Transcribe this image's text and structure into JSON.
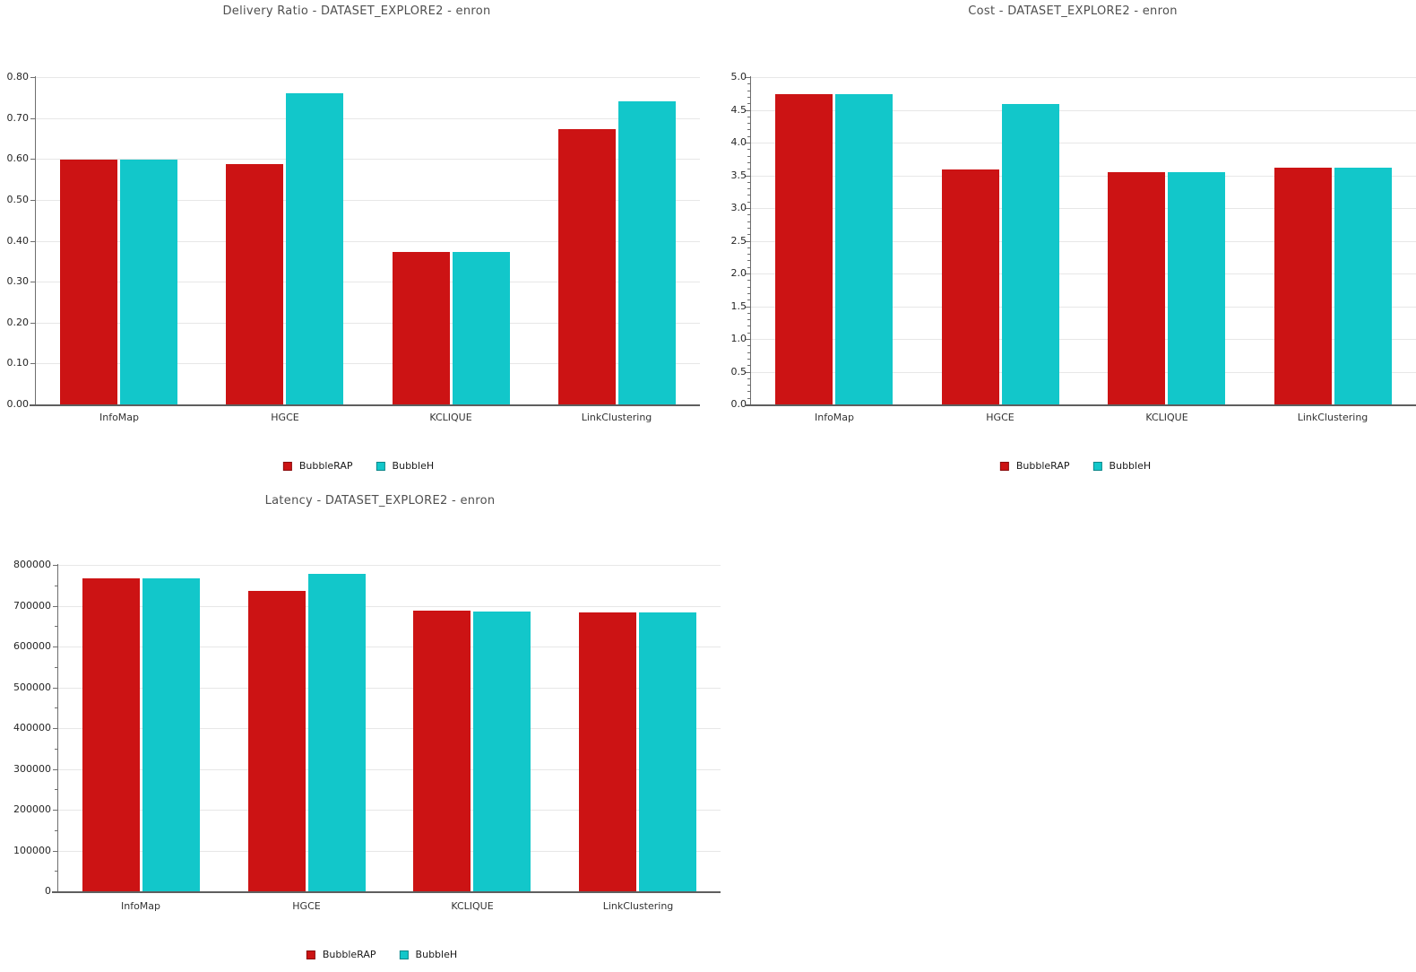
{
  "chart_data": [
    {
      "type": "bar",
      "title": "Delivery Ratio - DATASET_EXPLORE2 - enron",
      "categories": [
        "InfoMap",
        "HGCE",
        "KCLIQUE",
        "LinkClustering"
      ],
      "series": [
        {
          "name": "BubbleRAP",
          "color": "#cc1314",
          "values": [
            0.598,
            0.588,
            0.372,
            0.672
          ]
        },
        {
          "name": "BubbleH",
          "color": "#12c7ca",
          "values": [
            0.598,
            0.761,
            0.372,
            0.741
          ]
        }
      ],
      "xlabel": "",
      "ylabel": "",
      "ylim": [
        0,
        0.8
      ],
      "yticks": {
        "values": [
          0,
          0.1,
          0.2,
          0.3,
          0.4,
          0.5,
          0.6,
          0.7,
          0.8
        ],
        "labels": [
          "0.00",
          "0.10",
          "0.20",
          "0.30",
          "0.40",
          "0.50",
          "0.60",
          "0.70",
          "0.80"
        ]
      },
      "grid": true,
      "legend_position": "bottom"
    },
    {
      "type": "bar",
      "title": "Cost - DATASET_EXPLORE2 - enron",
      "categories": [
        "InfoMap",
        "HGCE",
        "KCLIQUE",
        "LinkClustering"
      ],
      "series": [
        {
          "name": "BubbleRAP",
          "color": "#cc1314",
          "values": [
            4.74,
            3.59,
            3.55,
            3.62
          ]
        },
        {
          "name": "BubbleH",
          "color": "#12c7ca",
          "values": [
            4.74,
            4.59,
            3.55,
            3.62
          ]
        }
      ],
      "xlabel": "",
      "ylabel": "",
      "ylim": [
        0,
        5
      ],
      "yticks": {
        "values": [
          0,
          0.5,
          1.0,
          1.5,
          2.0,
          2.5,
          3.0,
          3.5,
          4.0,
          4.5,
          5.0
        ],
        "labels": [
          "0.0",
          "0.5",
          "1.0",
          "1.5",
          "2.0",
          "2.5",
          "3.0",
          "3.5",
          "4.0",
          "4.5",
          "5.0"
        ]
      },
      "grid": true,
      "legend_position": "bottom"
    },
    {
      "type": "bar",
      "title": "Latency - DATASET_EXPLORE2 - enron",
      "categories": [
        "InfoMap",
        "HGCE",
        "KCLIQUE",
        "LinkClustering"
      ],
      "series": [
        {
          "name": "BubbleRAP",
          "color": "#cc1314",
          "values": [
            766000,
            737000,
            687000,
            684000
          ]
        },
        {
          "name": "BubbleH",
          "color": "#12c7ca",
          "values": [
            766000,
            779000,
            686000,
            684000
          ]
        }
      ],
      "xlabel": "",
      "ylabel": "",
      "ylim": [
        0,
        800000
      ],
      "yticks": {
        "values": [
          0,
          100000,
          200000,
          300000,
          400000,
          500000,
          600000,
          700000,
          800000
        ],
        "labels": [
          "0",
          "100000",
          "200000",
          "300000",
          "400000",
          "500000",
          "600000",
          "700000",
          "800000"
        ]
      },
      "ytick_labels_clipped_on_left": true,
      "grid": true,
      "legend_position": "bottom"
    }
  ]
}
